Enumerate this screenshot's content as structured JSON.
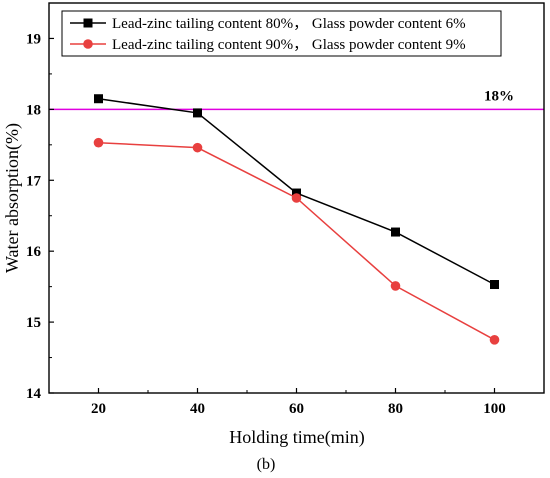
{
  "chart_data": {
    "type": "line",
    "title": "",
    "panel_label": "(b)",
    "xlabel": "Holding time(min)",
    "ylabel": "Water absorption(%)",
    "x": [
      20,
      40,
      60,
      80,
      100
    ],
    "xlim": [
      10,
      110
    ],
    "ylim": [
      14,
      19.5
    ],
    "xticks": [
      20,
      40,
      60,
      80,
      100
    ],
    "yticks": [
      14,
      15,
      16,
      17,
      18,
      19
    ],
    "grid": false,
    "legend_position": "top-left",
    "series": [
      {
        "name": "Lead-zinc tailing content 80%， Glass powder content 6%",
        "values": [
          18.15,
          17.95,
          16.82,
          16.27,
          15.53
        ],
        "color": "#000000",
        "marker": "square"
      },
      {
        "name": "Lead-zinc tailing content 90%， Glass powder content 9%",
        "values": [
          17.53,
          17.46,
          16.75,
          15.51,
          14.75
        ],
        "color": "#e8403f",
        "marker": "circle"
      }
    ],
    "reference_line": {
      "y": 18,
      "label": "18%",
      "color": "#e000e0"
    }
  }
}
